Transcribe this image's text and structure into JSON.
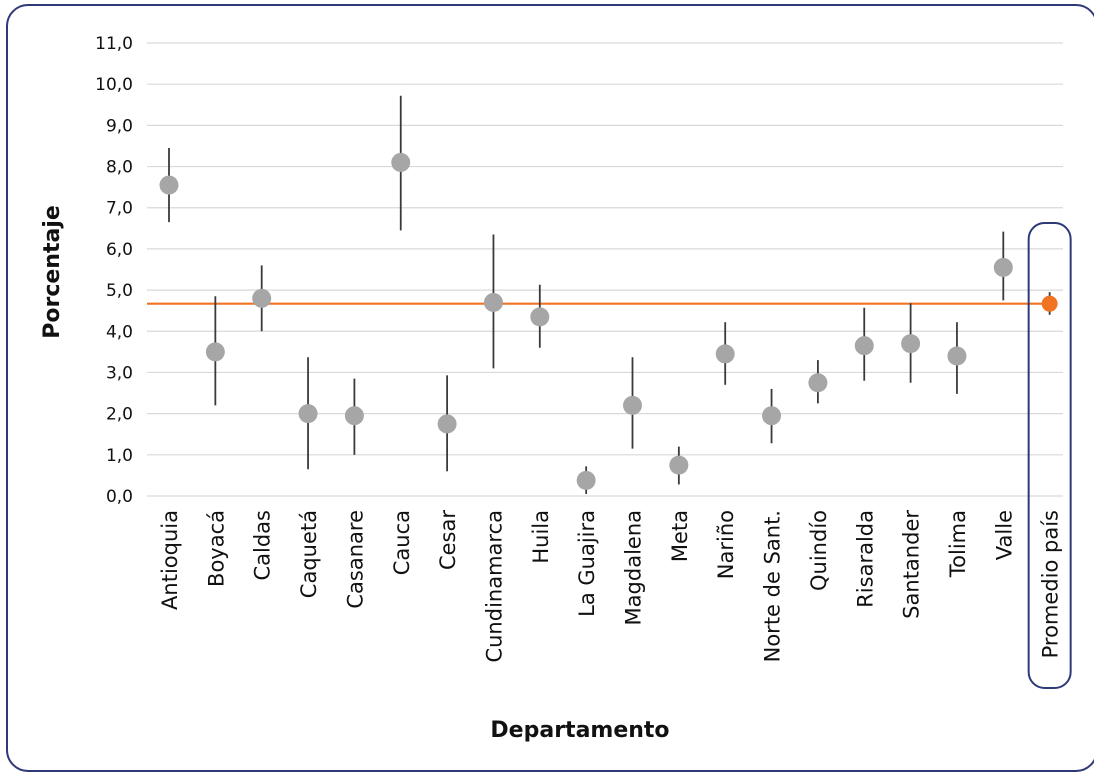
{
  "chart_data": {
    "type": "scatter",
    "xlabel": "Departamento",
    "ylabel": "Porcentaje",
    "ylim": [
      0,
      11
    ],
    "yticks": [
      "0,0",
      "1,0",
      "2,0",
      "3,0",
      "4,0",
      "5,0",
      "6,0",
      "7,0",
      "8,0",
      "9,0",
      "10,0",
      "11,0"
    ],
    "grid": true,
    "categories": [
      "Antioquia",
      "Boyacá",
      "Caldas",
      "Caquetá",
      "Casanare",
      "Cauca",
      "Cesar",
      "Cundinamarca",
      "Huila",
      "La Guajira",
      "Magdalena",
      "Meta",
      "Nariño",
      "Norte de Sant.",
      "Quindío",
      "Risaralda",
      "Santander",
      "Tolima",
      "Valle",
      "Promedio país"
    ],
    "values": [
      7.55,
      3.5,
      4.8,
      2.0,
      1.95,
      8.1,
      1.75,
      4.7,
      4.35,
      0.38,
      2.2,
      0.75,
      3.45,
      1.95,
      2.75,
      3.65,
      3.7,
      3.4,
      5.55,
      4.67
    ],
    "lower": [
      6.65,
      2.2,
      4.0,
      0.65,
      1.0,
      6.45,
      0.6,
      3.1,
      3.6,
      0.05,
      1.15,
      0.28,
      2.7,
      1.28,
      2.25,
      2.8,
      2.75,
      2.48,
      4.75,
      4.4
    ],
    "upper": [
      8.45,
      4.85,
      5.6,
      3.37,
      2.85,
      9.72,
      2.93,
      6.35,
      5.13,
      0.72,
      3.37,
      1.2,
      4.22,
      2.6,
      3.3,
      4.57,
      4.68,
      4.22,
      6.42,
      4.95
    ],
    "reference_line": 4.67,
    "colors": {
      "point": "#a6a6a7",
      "whisker": "#3a3a3a",
      "average": "#f07322",
      "grid": "#d9d9d9",
      "frame": "#2e3a78"
    }
  }
}
